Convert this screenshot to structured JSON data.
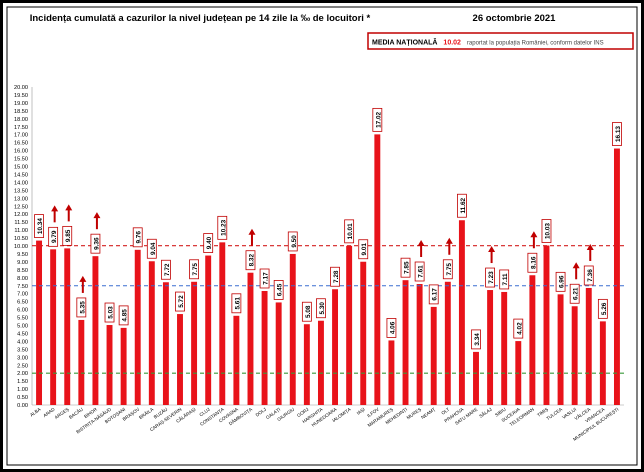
{
  "chart_data": {
    "type": "bar",
    "title": "Incidența cumulată a cazurilor la nivel județean pe 14 zile la ‰ de locuitori *",
    "date": "26 octombrie 2021",
    "media_label": "MEDIA NAȚIONALĂ",
    "media_value": "10.02",
    "media_note": "raportat la populația României, conform datelor INS",
    "reference_line": 10.02,
    "threshold_lines": [
      7.5,
      2.0
    ],
    "ylim": [
      0,
      20
    ],
    "ytick_step": 0.5,
    "categories": [
      "ALBA",
      "ARAD",
      "ARGEȘ",
      "BACĂU",
      "BIHOR",
      "BISTRIȚA-NĂSĂUD",
      "BOTOȘANI",
      "BRAȘOV",
      "BRĂILA",
      "BUZĂU",
      "CARAȘ-SEVERIN",
      "CĂLĂRAȘI",
      "CLUJ",
      "CONSTANȚA",
      "COVASNA",
      "DÂMBOVIȚA",
      "DOLJ",
      "GALAȚI",
      "GIURGIU",
      "GORJ",
      "HARGHITA",
      "HUNEDOARA",
      "IALOMIȚA",
      "IAȘI",
      "ILFOV",
      "MARAMUREȘ",
      "MEHEDINȚI",
      "MUREȘ",
      "NEAMȚ",
      "OLT",
      "PRAHOVA",
      "SATU MARE",
      "SĂLAJ",
      "SIBIU",
      "SUCEAVA",
      "TELEORMAN",
      "TIMIȘ",
      "TULCEA",
      "VASLUI",
      "VÂLCEA",
      "VRANCEA",
      "MUNICIPIUL BUCUREȘTI"
    ],
    "values": [
      10.34,
      9.79,
      9.85,
      5.35,
      9.36,
      5.03,
      4.85,
      9.76,
      9.04,
      7.72,
      5.72,
      7.75,
      9.4,
      10.23,
      5.61,
      8.32,
      7.17,
      6.45,
      9.5,
      5.08,
      5.3,
      7.28,
      10.01,
      9.01,
      17.02,
      4.06,
      7.85,
      7.61,
      6.17,
      7.75,
      11.62,
      3.34,
      7.23,
      7.11,
      4.02,
      8.16,
      10.03,
      6.96,
      6.21,
      7.36,
      5.26,
      16.13
    ],
    "arrows": [
      1,
      2,
      3,
      4,
      15,
      27,
      29,
      32,
      35,
      38,
      39
    ],
    "colors": {
      "bar": "#e8131a",
      "reference": "#d42020",
      "threshold_high": "#3a6fd0",
      "threshold_low": "#3a9a3a",
      "label_border": "#c00000"
    }
  }
}
